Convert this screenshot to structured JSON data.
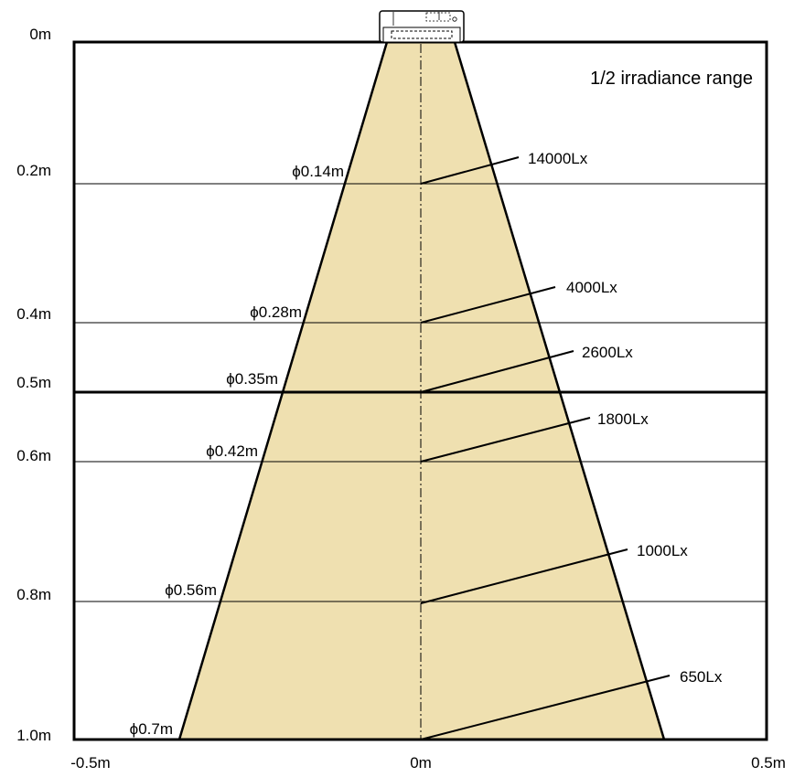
{
  "title": "1/2 irradiance range",
  "colors": {
    "beam": "#efe0b0",
    "frame": "#000000",
    "background": "#ffffff"
  },
  "distance_labels": [
    "0m",
    "0.2m",
    "0.4m",
    "0.5m",
    "0.6m",
    "0.8m",
    "1.0m"
  ],
  "width_labels": [
    "-0.5m",
    "0m",
    "0.5m"
  ],
  "levels": [
    {
      "distance_m": 0.2,
      "diameter": "ϕ0.14m",
      "diameter_m": 0.14,
      "illuminance": "14000Lx"
    },
    {
      "distance_m": 0.4,
      "diameter": "ϕ0.28m",
      "diameter_m": 0.28,
      "illuminance": "4000Lx"
    },
    {
      "distance_m": 0.5,
      "diameter": "ϕ0.35m",
      "diameter_m": 0.35,
      "illuminance": "2600Lx"
    },
    {
      "distance_m": 0.6,
      "diameter": "ϕ0.42m",
      "diameter_m": 0.42,
      "illuminance": "1800Lx"
    },
    {
      "distance_m": 0.8,
      "diameter": "ϕ0.56m",
      "diameter_m": 0.56,
      "illuminance": "1000Lx"
    },
    {
      "distance_m": 1.0,
      "diameter": "ϕ0.7m",
      "diameter_m": 0.7,
      "illuminance": "650Lx"
    }
  ]
}
